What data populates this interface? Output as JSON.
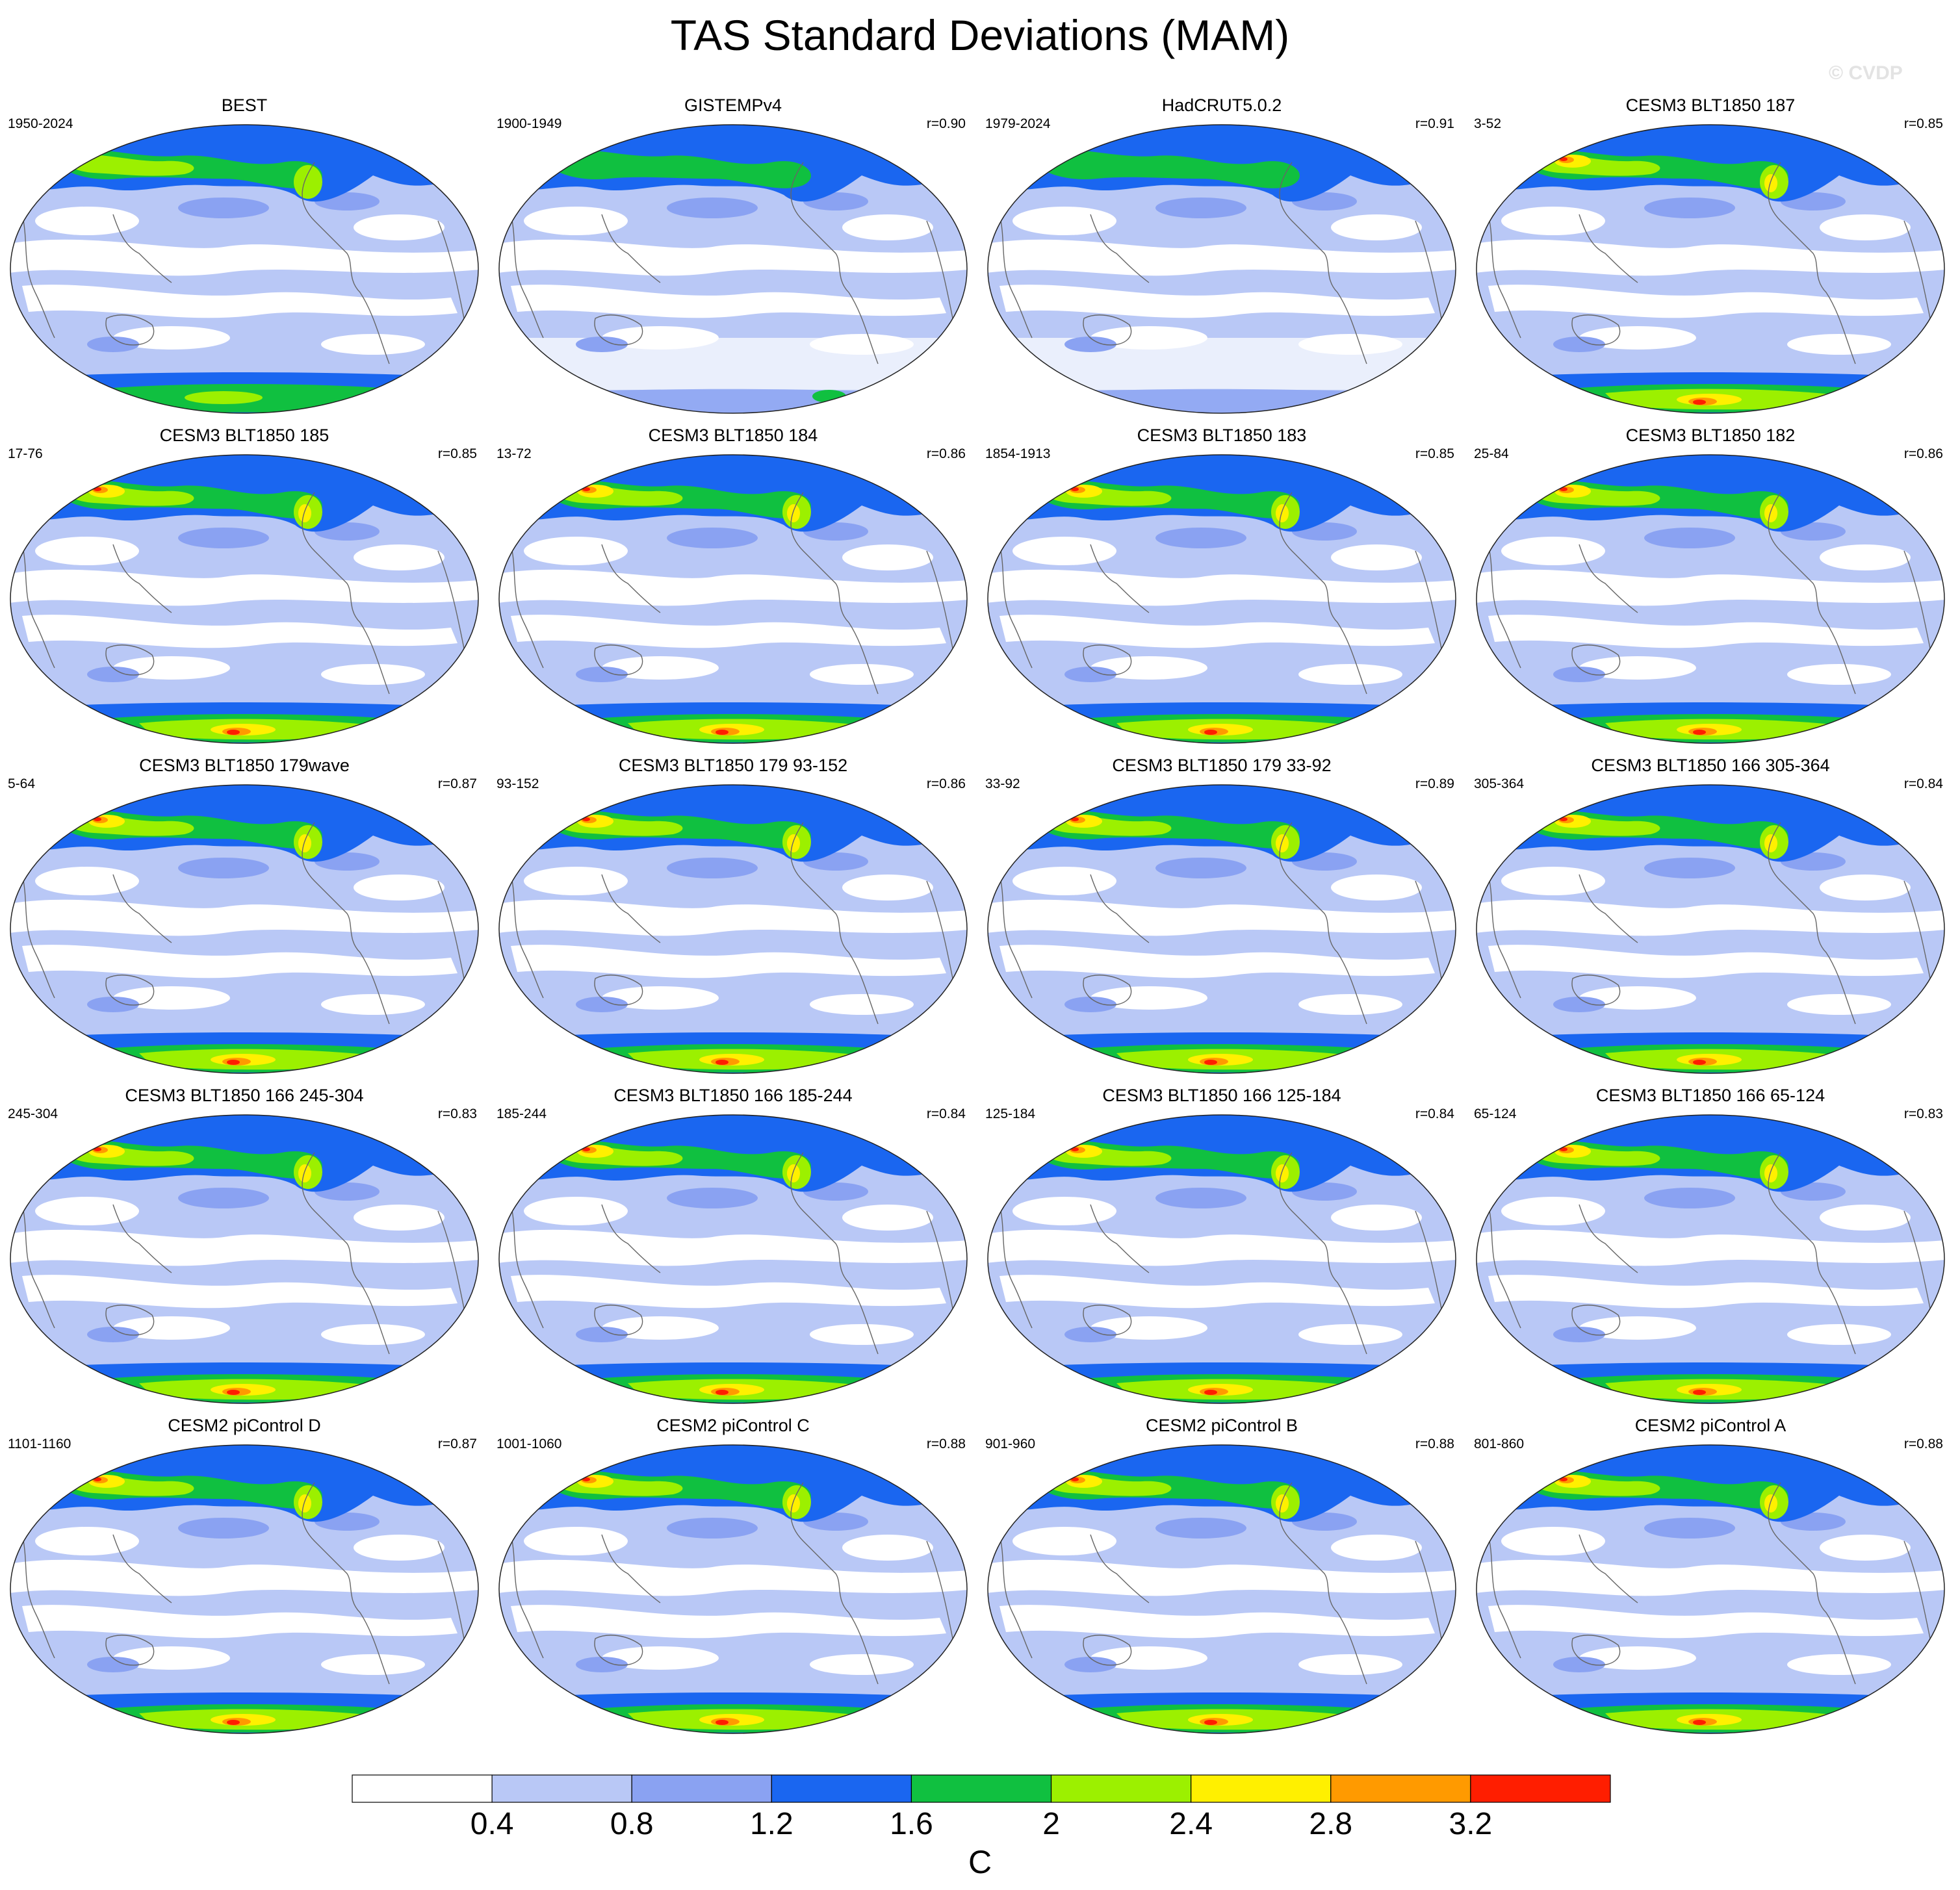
{
  "figure": {
    "title": "TAS Standard Deviations (MAM)",
    "watermark": "© CVDP"
  },
  "colorbar": {
    "units": "C",
    "levels": [
      "0.4",
      "0.8",
      "1.2",
      "1.6",
      "2",
      "2.4",
      "2.8",
      "3.2"
    ],
    "colors": [
      "#ffffff",
      "#b9c8f6",
      "#8aa2f2",
      "#1a66f0",
      "#10c040",
      "#9cf000",
      "#fff000",
      "#ff9a00",
      "#ff1e00"
    ]
  },
  "colors": {
    "land_outline": "#666666",
    "map_border": "#222222"
  },
  "panels": [
    {
      "title": "BEST",
      "years": "1950-2024",
      "r": ""
    },
    {
      "title": "GISTEMPv4",
      "years": "1900-1949",
      "r": "r=0.90"
    },
    {
      "title": "HadCRUT5.0.2",
      "years": "1979-2024",
      "r": "r=0.91"
    },
    {
      "title": "CESM3 BLT1850 187",
      "years": "3-52",
      "r": "r=0.85"
    },
    {
      "title": "CESM3 BLT1850 185",
      "years": "17-76",
      "r": "r=0.85"
    },
    {
      "title": "CESM3 BLT1850 184",
      "years": "13-72",
      "r": "r=0.86"
    },
    {
      "title": "CESM3 BLT1850 183",
      "years": "1854-1913",
      "r": "r=0.85"
    },
    {
      "title": "CESM3 BLT1850 182",
      "years": "25-84",
      "r": "r=0.86"
    },
    {
      "title": "CESM3 BLT1850 179wave",
      "years": "5-64",
      "r": "r=0.87"
    },
    {
      "title": "CESM3 BLT1850 179 93-152",
      "years": "93-152",
      "r": "r=0.86"
    },
    {
      "title": "CESM3 BLT1850 179 33-92",
      "years": "33-92",
      "r": "r=0.89"
    },
    {
      "title": "CESM3 BLT1850 166 305-364",
      "years": "305-364",
      "r": "r=0.84"
    },
    {
      "title": "CESM3 BLT1850 166 245-304",
      "years": "245-304",
      "r": "r=0.83"
    },
    {
      "title": "CESM3 BLT1850 166 185-244",
      "years": "185-244",
      "r": "r=0.84"
    },
    {
      "title": "CESM3 BLT1850 166 125-184",
      "years": "125-184",
      "r": "r=0.84"
    },
    {
      "title": "CESM3 BLT1850 166 65-124",
      "years": "65-124",
      "r": "r=0.83"
    },
    {
      "title": "CESM2 piControl D",
      "years": "1101-1160",
      "r": "r=0.87"
    },
    {
      "title": "CESM2 piControl C",
      "years": "1001-1060",
      "r": "r=0.88"
    },
    {
      "title": "CESM2 piControl B",
      "years": "901-960",
      "r": "r=0.88"
    },
    {
      "title": "CESM2 piControl A",
      "years": "801-860",
      "r": "r=0.88"
    }
  ]
}
